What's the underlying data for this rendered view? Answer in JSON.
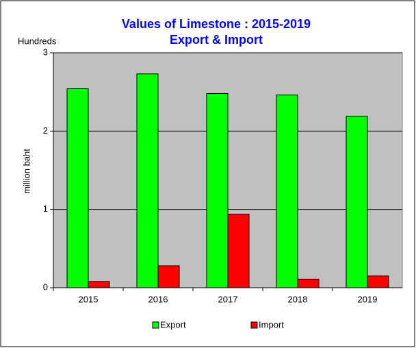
{
  "chart_data": {
    "type": "bar",
    "title": [
      "Values of Limestone : 2015-2019",
      "Export & Import"
    ],
    "unit_label": "Hundreds",
    "y_label": "million baht",
    "categories": [
      "2015",
      "2016",
      "2017",
      "2018",
      "2019"
    ],
    "series": [
      {
        "name": "Export",
        "color": "#00ff00",
        "values": [
          2.54,
          2.73,
          2.48,
          2.46,
          2.19
        ]
      },
      {
        "name": "Import",
        "color": "#ff0000",
        "values": [
          0.08,
          0.28,
          0.94,
          0.11,
          0.15
        ]
      }
    ],
    "ylim": [
      0,
      3
    ],
    "yticks": [
      0,
      1,
      2,
      3
    ],
    "grid": true,
    "legend": "bottom"
  }
}
